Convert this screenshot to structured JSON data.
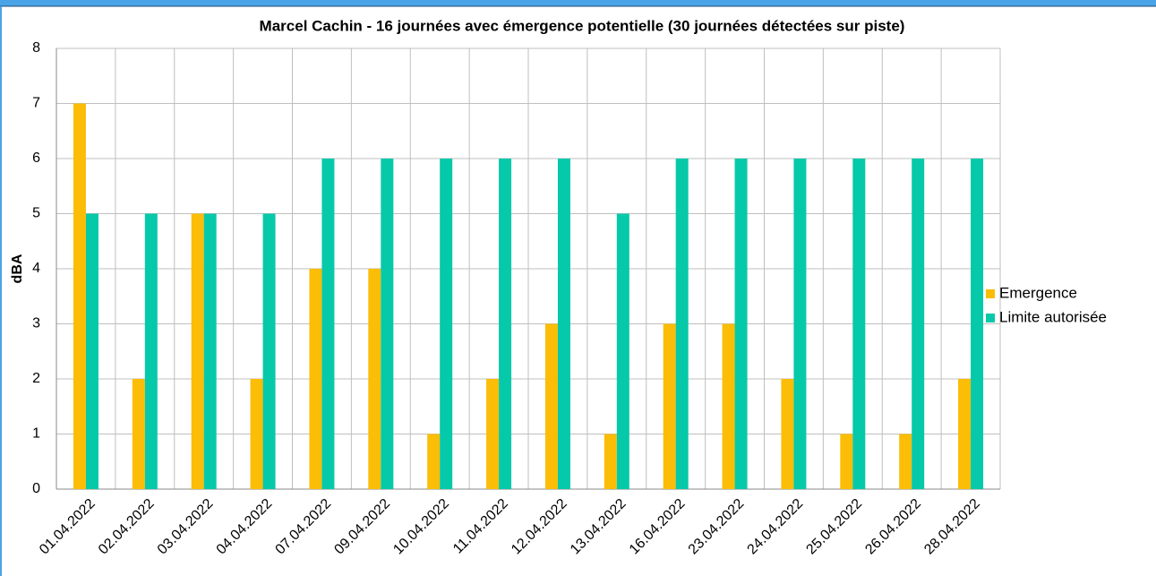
{
  "chart_data": {
    "type": "bar",
    "title": "Marcel Cachin - 16 journées avec émergence potentielle (30 journées détectées sur piste)",
    "y_label": "dBA",
    "categories": [
      "01.04.2022",
      "02.04.2022",
      "03.04.2022",
      "04.04.2022",
      "07.04.2022",
      "09.04.2022",
      "10.04.2022",
      "11.04.2022",
      "12.04.2022",
      "13.04.2022",
      "16.04.2022",
      "23.04.2022",
      "24.04.2022",
      "25.04.2022",
      "26.04.2022",
      "28.04.2022"
    ],
    "series": [
      {
        "name": "Emergence",
        "color": "#fbbd06",
        "values": [
          7,
          2,
          5,
          2,
          4,
          4,
          1,
          2,
          3,
          1,
          3,
          3,
          2,
          1,
          1,
          2
        ]
      },
      {
        "name": "Limite autorisée",
        "color": "#06c9a9",
        "values": [
          5,
          5,
          5,
          5,
          6,
          6,
          6,
          6,
          6,
          5,
          6,
          6,
          6,
          6,
          6,
          6
        ]
      }
    ],
    "ylim": [
      0,
      8
    ],
    "yticks": [
      0,
      1,
      2,
      3,
      4,
      5,
      6,
      7,
      8
    ],
    "grid": true,
    "legend": "right"
  }
}
